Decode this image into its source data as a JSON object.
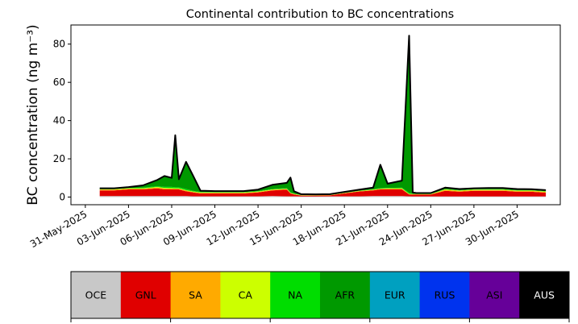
{
  "chart_data": {
    "type": "area",
    "title": "Continental contribution to BC concentrations",
    "ylabel": "BC concentration (ng m⁻³)",
    "xlabel": "",
    "xlim": [
      "2025-05-30",
      "2025-07-03"
    ],
    "ylim": [
      -4,
      90
    ],
    "yticks": [
      0,
      20,
      40,
      60,
      80
    ],
    "xticks": [
      "31-May-2025",
      "03-Jun-2025",
      "06-Jun-2025",
      "09-Jun-2025",
      "12-Jun-2025",
      "15-Jun-2025",
      "18-Jun-2025",
      "21-Jun-2025",
      "24-Jun-2025",
      "27-Jun-2025",
      "30-Jun-2025"
    ],
    "legend_position": "bottom",
    "grid": false,
    "x": [
      "2025-06-01",
      "2025-06-02",
      "2025-06-03",
      "2025-06-04",
      "2025-06-05",
      "2025-06-05T12:00",
      "2025-06-06",
      "2025-06-06T06:00",
      "2025-06-06T12:00",
      "2025-06-07",
      "2025-06-07T12:00",
      "2025-06-08",
      "2025-06-09",
      "2025-06-10",
      "2025-06-11",
      "2025-06-12",
      "2025-06-13",
      "2025-06-14",
      "2025-06-14T06:00",
      "2025-06-14T12:00",
      "2025-06-15",
      "2025-06-16",
      "2025-06-17",
      "2025-06-18",
      "2025-06-19",
      "2025-06-20",
      "2025-06-20T12:00",
      "2025-06-21",
      "2025-06-22",
      "2025-06-22T12:00",
      "2025-06-22T18:00",
      "2025-06-23",
      "2025-06-24",
      "2025-06-25",
      "2025-06-26",
      "2025-06-27",
      "2025-06-28",
      "2025-06-29",
      "2025-06-30",
      "2025-07-01",
      "2025-07-02"
    ],
    "series": [
      {
        "name": "OCE",
        "color": "#c8c8c8",
        "values": [
          0.5,
          0.5,
          0.5,
          0.5,
          0.5,
          0.5,
          0.5,
          0.5,
          0.5,
          0.5,
          0.4,
          0.4,
          0.4,
          0.4,
          0.4,
          0.4,
          0.5,
          0.4,
          0.4,
          0.4,
          0.3,
          0.3,
          0.4,
          0.4,
          0.4,
          0.5,
          0.5,
          0.5,
          0.5,
          0.4,
          0.3,
          0.3,
          0.3,
          0.3,
          0.3,
          0.3,
          0.3,
          0.3,
          0.3,
          0.3,
          0.3
        ]
      },
      {
        "name": "GNL",
        "color": "#e00000",
        "values": [
          3.0,
          3.0,
          3.5,
          3.5,
          4.0,
          3.5,
          3.5,
          3.5,
          3.5,
          2.5,
          2.0,
          1.5,
          1.5,
          1.5,
          1.5,
          2.0,
          3.0,
          3.5,
          1.5,
          1.0,
          0.5,
          0.5,
          0.5,
          1.5,
          2.5,
          3.0,
          3.5,
          3.5,
          3.5,
          1.0,
          1.0,
          1.0,
          1.0,
          3.0,
          2.5,
          3.0,
          3.0,
          3.0,
          2.5,
          2.5,
          2.0
        ]
      },
      {
        "name": "SA",
        "color": "#ffaa00",
        "values": [
          0.4,
          0.4,
          0.4,
          0.4,
          0.5,
          0.5,
          0.4,
          0.4,
          0.4,
          0.4,
          0.3,
          0.3,
          0.3,
          0.3,
          0.3,
          0.3,
          0.3,
          0.3,
          0.2,
          0.2,
          0.1,
          0.1,
          0.1,
          0.2,
          0.2,
          0.3,
          0.3,
          0.4,
          0.4,
          0.2,
          0.2,
          0.2,
          0.2,
          0.5,
          0.4,
          0.4,
          0.4,
          0.4,
          0.4,
          0.4,
          0.4
        ]
      },
      {
        "name": "CA",
        "color": "#ccff00",
        "values": [
          0.2,
          0.2,
          0.2,
          0.2,
          0.3,
          0.3,
          0.3,
          0.2,
          0.2,
          0.2,
          0.2,
          0.2,
          0.2,
          0.2,
          0.2,
          0.2,
          0.2,
          0.2,
          0.1,
          0.1,
          0.1,
          0.1,
          0.1,
          0.1,
          0.1,
          0.1,
          0.1,
          0.2,
          0.2,
          0.1,
          0.1,
          0.1,
          0.1,
          0.2,
          0.2,
          0.2,
          0.2,
          0.2,
          0.2,
          0.2,
          0.2
        ]
      },
      {
        "name": "NA",
        "color": "#00dd00",
        "values": [
          0.2,
          0.2,
          0.2,
          0.3,
          0.4,
          0.5,
          0.6,
          0.5,
          0.5,
          0.6,
          0.3,
          0.2,
          0.2,
          0.2,
          0.2,
          0.2,
          0.2,
          0.3,
          0.3,
          0.1,
          0.1,
          0.1,
          0.1,
          0.1,
          0.1,
          0.2,
          0.3,
          0.2,
          0.3,
          0.5,
          0.1,
          0.1,
          0.1,
          0.2,
          0.2,
          0.2,
          0.2,
          0.2,
          0.2,
          0.2,
          0.2
        ]
      },
      {
        "name": "AFR",
        "color": "#009900",
        "values": [
          0.1,
          0.1,
          0.2,
          1.0,
          3.0,
          5.5,
          4.5,
          27.0,
          4.0,
          14.0,
          7.5,
          0.5,
          0.3,
          0.3,
          0.3,
          0.6,
          2.0,
          2.5,
          7.5,
          1.0,
          0.2,
          0.1,
          0.1,
          0.2,
          0.3,
          0.6,
          12.0,
          2.0,
          3.5,
          82.0,
          0.5,
          0.2,
          0.2,
          0.5,
          0.4,
          0.3,
          0.4,
          0.4,
          0.4,
          0.3,
          0.3
        ]
      },
      {
        "name": "EUR",
        "color": "#00a0c0",
        "values": [
          0.1,
          0.1,
          0.1,
          0.1,
          0.1,
          0.1,
          0.1,
          0.1,
          0.1,
          0.1,
          0.1,
          0.1,
          0.1,
          0.1,
          0.1,
          0.1,
          0.1,
          0.1,
          0.1,
          0.1,
          0.1,
          0.1,
          0.1,
          0.1,
          0.1,
          0.1,
          0.1,
          0.1,
          0.1,
          0.1,
          0.1,
          0.1,
          0.1,
          0.1,
          0.1,
          0.1,
          0.1,
          0.1,
          0.1,
          0.1,
          0.1
        ]
      },
      {
        "name": "RUS",
        "color": "#0033ee",
        "values": [
          0.05,
          0.05,
          0.05,
          0.05,
          0.05,
          0.05,
          0.05,
          0.05,
          0.05,
          0.05,
          0.05,
          0.05,
          0.05,
          0.05,
          0.05,
          0.05,
          0.05,
          0.05,
          0.05,
          0.05,
          0.05,
          0.05,
          0.05,
          0.05,
          0.05,
          0.05,
          0.05,
          0.05,
          0.05,
          0.05,
          0.05,
          0.05,
          0.05,
          0.05,
          0.05,
          0.05,
          0.05,
          0.05,
          0.05,
          0.05,
          0.05
        ]
      },
      {
        "name": "ASI",
        "color": "#660099",
        "values": [
          0.05,
          0.05,
          0.05,
          0.05,
          0.05,
          0.05,
          0.05,
          0.05,
          0.05,
          0.05,
          0.05,
          0.05,
          0.05,
          0.05,
          0.05,
          0.05,
          0.05,
          0.05,
          0.05,
          0.05,
          0.05,
          0.05,
          0.05,
          0.05,
          0.05,
          0.05,
          0.05,
          0.05,
          0.05,
          0.05,
          0.05,
          0.05,
          0.05,
          0.05,
          0.05,
          0.05,
          0.05,
          0.05,
          0.05,
          0.05,
          0.05
        ]
      },
      {
        "name": "AUS",
        "color": "#000000",
        "values": [
          0.02,
          0.02,
          0.02,
          0.02,
          0.02,
          0.02,
          0.02,
          0.02,
          0.02,
          0.02,
          0.02,
          0.02,
          0.02,
          0.02,
          0.02,
          0.02,
          0.02,
          0.02,
          0.02,
          0.02,
          0.02,
          0.02,
          0.02,
          0.02,
          0.02,
          0.02,
          0.02,
          0.02,
          0.02,
          0.02,
          0.02,
          0.02,
          0.02,
          0.02,
          0.02,
          0.02,
          0.02,
          0.02,
          0.02,
          0.02,
          0.02
        ]
      }
    ],
    "total_line_color": "#000000"
  }
}
